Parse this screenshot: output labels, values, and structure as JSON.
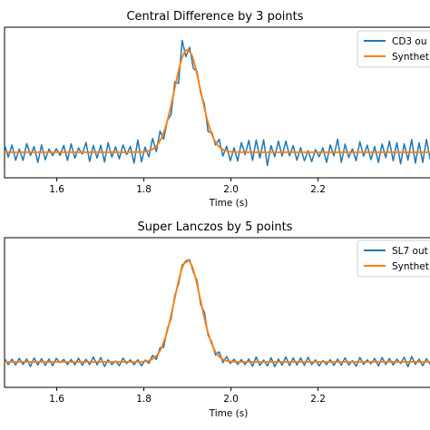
{
  "colors": {
    "measured": "#1f77b4",
    "synthetic": "#ff7f0e",
    "axis": "#000000"
  },
  "chart_data": [
    {
      "type": "line",
      "title": "Central Difference by 3 points",
      "xlabel": "Time (s)",
      "ylabel": "",
      "xlim": [
        1.48,
        2.48
      ],
      "ylim": [
        -0.25,
        1.22
      ],
      "xticks": [
        1.6,
        1.8,
        2.0,
        2.2
      ],
      "xtick_labels": [
        "1.6",
        "1.8",
        "2.0",
        "2.2"
      ],
      "legend": {
        "position": "top-right",
        "entries": [
          "CD3 ou",
          "Synthet"
        ]
      },
      "series": [
        {
          "name": "CD3 ou",
          "color": "#1f77b4",
          "kind": "noisy",
          "noise_amplitude": 0.11,
          "peak_time": 1.9,
          "peak_width": 0.03,
          "peak_height": 1.0
        },
        {
          "name": "Synthet",
          "color": "#ff7f0e",
          "kind": "gaussian",
          "peak_time": 1.9,
          "peak_width": 0.03,
          "peak_height": 1.0
        }
      ]
    },
    {
      "type": "line",
      "title": "Super Lanczos by 5 points",
      "xlabel": "Time (s)",
      "ylabel": "",
      "xlim": [
        1.48,
        2.48
      ],
      "ylim": [
        -0.25,
        1.22
      ],
      "xticks": [
        1.6,
        1.8,
        2.0,
        2.2
      ],
      "xtick_labels": [
        "1.6",
        "1.8",
        "2.0",
        "2.2"
      ],
      "legend": {
        "position": "top-right",
        "entries": [
          "SL7 out",
          "Synthet"
        ]
      },
      "series": [
        {
          "name": "SL7 out",
          "color": "#1f77b4",
          "kind": "noisy",
          "noise_amplitude": 0.045,
          "peak_time": 1.9,
          "peak_width": 0.03,
          "peak_height": 1.0
        },
        {
          "name": "Synthet",
          "color": "#ff7f0e",
          "kind": "gaussian",
          "peak_time": 1.9,
          "peak_width": 0.03,
          "peak_height": 1.0
        }
      ]
    }
  ]
}
